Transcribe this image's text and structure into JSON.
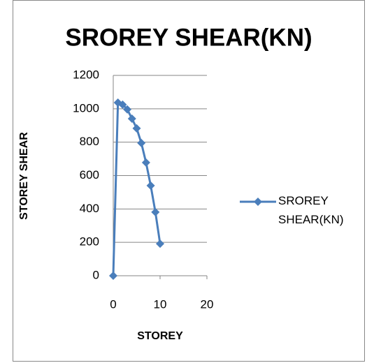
{
  "chart_data": {
    "type": "scatter",
    "title": "SROREY SHEAR(KN)",
    "x_label": "STOREY",
    "y_label": "STOREY SHEAR",
    "xlim": [
      0,
      20
    ],
    "xticks": [
      0,
      10,
      20
    ],
    "ylim": [
      0,
      1200
    ],
    "yticks": [
      0,
      200,
      400,
      600,
      800,
      1000,
      1200
    ],
    "grid": true,
    "legend": "right",
    "series": [
      {
        "name": "SROREY SHEAR(KN)",
        "color": "#4a7ebb",
        "x": [
          0,
          1,
          2,
          3,
          4,
          5,
          6,
          7,
          8,
          9,
          10
        ],
        "values": [
          0,
          1037,
          1025,
          996,
          941,
          883,
          795,
          678,
          540,
          381,
          192
        ]
      }
    ]
  }
}
